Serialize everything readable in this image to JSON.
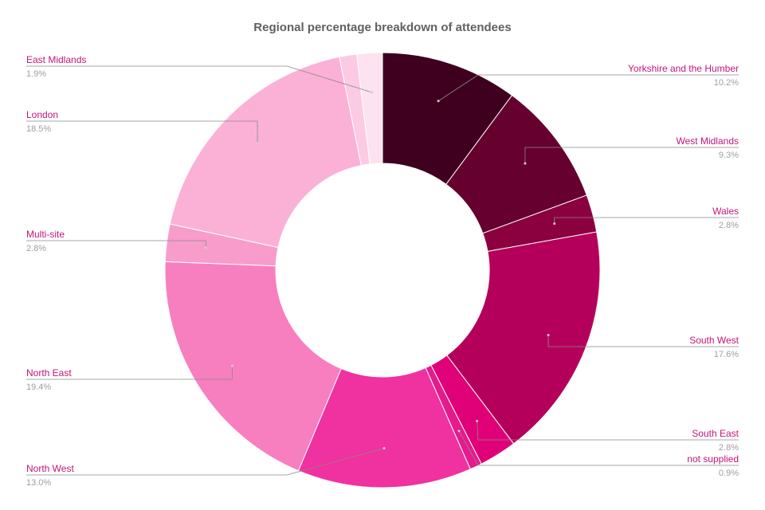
{
  "chart_data": {
    "type": "pie",
    "style": "donut",
    "title": "Regional percentage breakdown of attendees",
    "slices": [
      {
        "label": "Yorkshire and the Humber",
        "value": 10.2,
        "pct_label": "10.2%",
        "color": "#3f0020"
      },
      {
        "label": "West Midlands",
        "value": 9.3,
        "pct_label": "9.3%",
        "color": "#66002f"
      },
      {
        "label": "Wales",
        "value": 2.8,
        "pct_label": "2.8%",
        "color": "#8b003f"
      },
      {
        "label": "South West",
        "value": 17.6,
        "pct_label": "17.6%",
        "color": "#b5005b"
      },
      {
        "label": "South East",
        "value": 2.8,
        "pct_label": "2.8%",
        "color": "#e00077"
      },
      {
        "label": "not supplied",
        "value": 0.9,
        "pct_label": "0.9%",
        "color": "#e51a8c"
      },
      {
        "label": "North West",
        "value": 13.0,
        "pct_label": "13.0%",
        "color": "#f031a0"
      },
      {
        "label": "North East",
        "value": 19.4,
        "pct_label": "19.4%",
        "color": "#f77fbf"
      },
      {
        "label": "Multi-site",
        "value": 2.8,
        "pct_label": "2.8%",
        "color": "#f89ccb"
      },
      {
        "label": "London",
        "value": 18.5,
        "pct_label": "18.5%",
        "color": "#fbb1d6"
      },
      {
        "label": "",
        "value": 1.3,
        "pct_label": "",
        "color": "#fccbe3"
      },
      {
        "label": "East Midlands",
        "value": 1.9,
        "pct_label": "1.9%",
        "color": "#fde3ef"
      }
    ],
    "label_colors": {
      "name": "#c4157a",
      "percent": "#9e9e9e",
      "leader": "#8a8a8a"
    }
  }
}
